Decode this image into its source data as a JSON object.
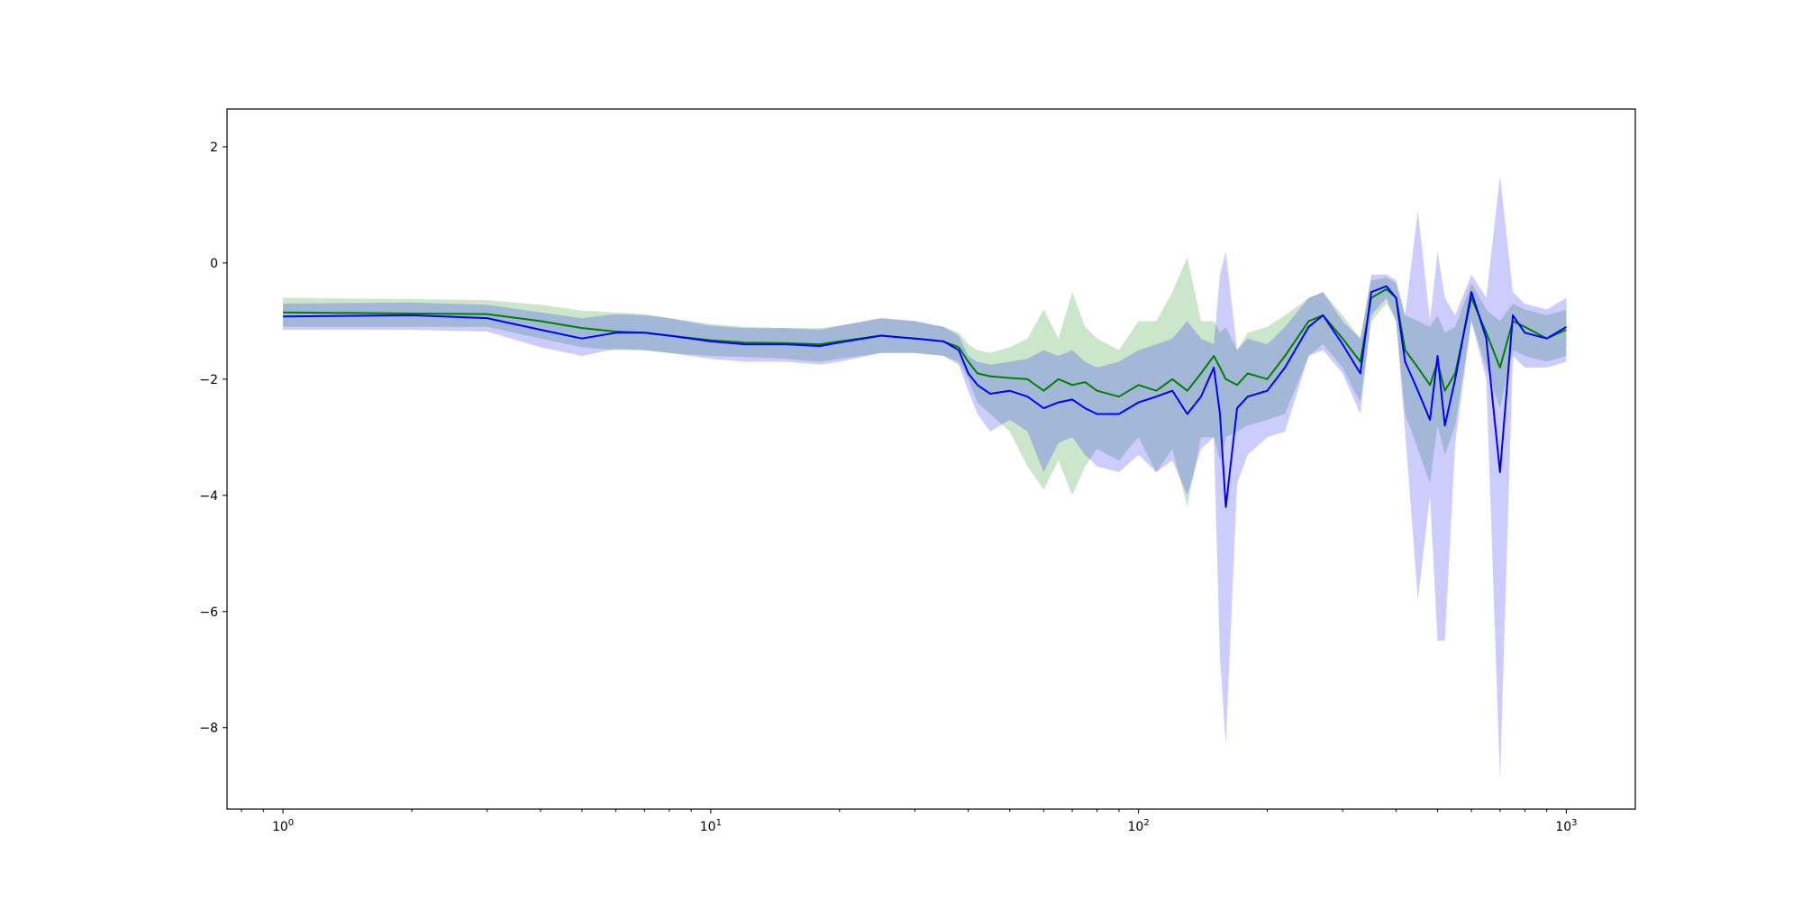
{
  "chart_data": {
    "type": "line",
    "title": "",
    "xlabel": "",
    "ylabel": "",
    "xscale": "log",
    "xlim": [
      0.74,
      1450
    ],
    "ylim": [
      -9.4,
      2.65
    ],
    "grid": false,
    "x_ticks": [
      {
        "value": 1,
        "base": "10",
        "exp": "0"
      },
      {
        "value": 10,
        "base": "10",
        "exp": "1"
      },
      {
        "value": 100,
        "base": "10",
        "exp": "2"
      },
      {
        "value": 1000,
        "base": "10",
        "exp": "3"
      }
    ],
    "y_ticks": [
      {
        "value": 2,
        "label": "2"
      },
      {
        "value": 0,
        "label": "0"
      },
      {
        "value": -2,
        "label": "−2"
      },
      {
        "value": -4,
        "label": "−4"
      },
      {
        "value": -6,
        "label": "−6"
      },
      {
        "value": -8,
        "label": "−8"
      }
    ],
    "series": [
      {
        "color": "#008000",
        "band_color": "#008000",
        "x": [
          1,
          2,
          3,
          4,
          5,
          6,
          7,
          8,
          10,
          12,
          15,
          18,
          20,
          25,
          30,
          35,
          38,
          40,
          42,
          45,
          50,
          55,
          60,
          65,
          70,
          75,
          80,
          90,
          100,
          110,
          120,
          130,
          140,
          150,
          155,
          160,
          170,
          180,
          200,
          220,
          250,
          270,
          300,
          330,
          350,
          380,
          400,
          420,
          450,
          480,
          500,
          520,
          550,
          600,
          650,
          700,
          750,
          800,
          900,
          1000
        ],
        "y": [
          -0.85,
          -0.87,
          -0.88,
          -1.0,
          -1.12,
          -1.18,
          -1.2,
          -1.25,
          -1.33,
          -1.37,
          -1.38,
          -1.4,
          -1.35,
          -1.25,
          -1.3,
          -1.35,
          -1.45,
          -1.7,
          -1.9,
          -1.95,
          -1.98,
          -2.0,
          -2.2,
          -2.0,
          -2.1,
          -2.05,
          -2.2,
          -2.3,
          -2.1,
          -2.2,
          -2.0,
          -2.2,
          -1.9,
          -1.6,
          -1.8,
          -2.0,
          -2.1,
          -1.9,
          -2.0,
          -1.6,
          -1.0,
          -0.9,
          -1.3,
          -1.7,
          -0.6,
          -0.45,
          -0.6,
          -1.5,
          -1.8,
          -2.1,
          -1.7,
          -2.2,
          -1.9,
          -0.6,
          -1.2,
          -1.8,
          -1.0,
          -1.1,
          -1.3,
          -1.15
        ],
        "lo": [
          -1.1,
          -1.1,
          -1.1,
          -1.3,
          -1.45,
          -1.5,
          -1.5,
          -1.55,
          -1.6,
          -1.62,
          -1.65,
          -1.7,
          -1.65,
          -1.55,
          -1.55,
          -1.6,
          -1.7,
          -2.0,
          -2.4,
          -2.6,
          -2.9,
          -3.5,
          -3.9,
          -3.4,
          -4.0,
          -3.5,
          -3.2,
          -3.4,
          -3.0,
          -3.6,
          -3.2,
          -4.2,
          -3.0,
          -3.0,
          -3.4,
          -3.0,
          -2.9,
          -2.8,
          -2.7,
          -2.6,
          -1.6,
          -1.4,
          -1.8,
          -2.4,
          -1.0,
          -0.7,
          -1.0,
          -2.6,
          -3.2,
          -3.8,
          -2.8,
          -3.3,
          -2.8,
          -1.0,
          -1.8,
          -2.5,
          -1.5,
          -1.6,
          -1.7,
          -1.6
        ],
        "hi": [
          -0.6,
          -0.62,
          -0.64,
          -0.72,
          -0.82,
          -0.85,
          -0.88,
          -0.95,
          -1.05,
          -1.1,
          -1.12,
          -1.12,
          -1.08,
          -0.95,
          -1.0,
          -1.1,
          -1.2,
          -1.4,
          -1.5,
          -1.55,
          -1.45,
          -1.3,
          -0.8,
          -1.3,
          -0.5,
          -1.1,
          -1.3,
          -1.5,
          -1.0,
          -1.0,
          -0.5,
          0.1,
          -1.0,
          -1.0,
          -1.2,
          -1.1,
          -1.5,
          -1.2,
          -1.1,
          -0.9,
          -0.6,
          -0.5,
          -0.9,
          -1.3,
          -0.3,
          -0.25,
          -0.35,
          -0.9,
          -1.0,
          -1.1,
          -0.9,
          -1.2,
          -1.1,
          -0.35,
          -0.8,
          -1.0,
          -0.7,
          -0.8,
          -0.9,
          -0.8
        ]
      },
      {
        "color": "#0000ff",
        "band_color": "#0000ff",
        "x": [
          1,
          2,
          3,
          4,
          5,
          6,
          7,
          8,
          10,
          12,
          15,
          18,
          20,
          25,
          30,
          35,
          38,
          40,
          42,
          45,
          50,
          55,
          60,
          65,
          70,
          75,
          80,
          90,
          100,
          110,
          120,
          130,
          140,
          150,
          155,
          160,
          170,
          180,
          200,
          220,
          250,
          270,
          300,
          330,
          350,
          380,
          400,
          420,
          450,
          480,
          500,
          520,
          550,
          600,
          650,
          700,
          750,
          800,
          900,
          1000
        ],
        "y": [
          -0.92,
          -0.9,
          -0.95,
          -1.15,
          -1.3,
          -1.2,
          -1.2,
          -1.25,
          -1.35,
          -1.4,
          -1.4,
          -1.43,
          -1.37,
          -1.25,
          -1.3,
          -1.35,
          -1.5,
          -1.9,
          -2.1,
          -2.25,
          -2.2,
          -2.3,
          -2.5,
          -2.4,
          -2.35,
          -2.5,
          -2.6,
          -2.6,
          -2.4,
          -2.3,
          -2.2,
          -2.6,
          -2.3,
          -1.8,
          -2.6,
          -4.2,
          -2.5,
          -2.3,
          -2.2,
          -1.8,
          -1.1,
          -0.9,
          -1.4,
          -1.9,
          -0.5,
          -0.4,
          -0.6,
          -1.7,
          -2.2,
          -2.7,
          -1.6,
          -2.8,
          -2.0,
          -0.5,
          -1.3,
          -3.6,
          -0.9,
          -1.2,
          -1.3,
          -1.1
        ],
        "lo": [
          -1.15,
          -1.15,
          -1.18,
          -1.45,
          -1.6,
          -1.48,
          -1.5,
          -1.55,
          -1.65,
          -1.7,
          -1.7,
          -1.75,
          -1.7,
          -1.55,
          -1.55,
          -1.6,
          -1.75,
          -2.2,
          -2.6,
          -2.9,
          -2.7,
          -2.9,
          -3.6,
          -3.1,
          -3.0,
          -3.3,
          -3.5,
          -3.6,
          -3.3,
          -3.6,
          -3.4,
          -4.0,
          -3.2,
          -3.0,
          -6.8,
          -8.3,
          -3.8,
          -3.3,
          -3.0,
          -2.9,
          -1.6,
          -1.5,
          -1.9,
          -2.6,
          -0.9,
          -0.6,
          -1.0,
          -2.9,
          -5.8,
          -4.0,
          -6.5,
          -6.5,
          -3.1,
          -1.0,
          -2.0,
          -8.9,
          -1.6,
          -1.8,
          -1.8,
          -1.7
        ],
        "hi": [
          -0.7,
          -0.68,
          -0.72,
          -0.85,
          -0.95,
          -0.88,
          -0.9,
          -0.95,
          -1.08,
          -1.12,
          -1.12,
          -1.15,
          -1.08,
          -0.95,
          -1.0,
          -1.1,
          -1.25,
          -1.6,
          -1.7,
          -1.75,
          -1.7,
          -1.65,
          -1.5,
          -1.6,
          -1.5,
          -1.7,
          -1.8,
          -1.7,
          -1.5,
          -1.4,
          -1.3,
          -1.0,
          -1.3,
          -1.4,
          -0.2,
          0.2,
          -1.5,
          -1.3,
          -1.4,
          -1.1,
          -0.6,
          -0.5,
          -1.0,
          -1.3,
          -0.2,
          -0.2,
          -0.3,
          -0.9,
          0.9,
          -1.0,
          0.2,
          -0.6,
          -0.9,
          -0.2,
          -0.6,
          1.5,
          -0.5,
          -0.7,
          -0.8,
          -0.6
        ]
      }
    ]
  }
}
